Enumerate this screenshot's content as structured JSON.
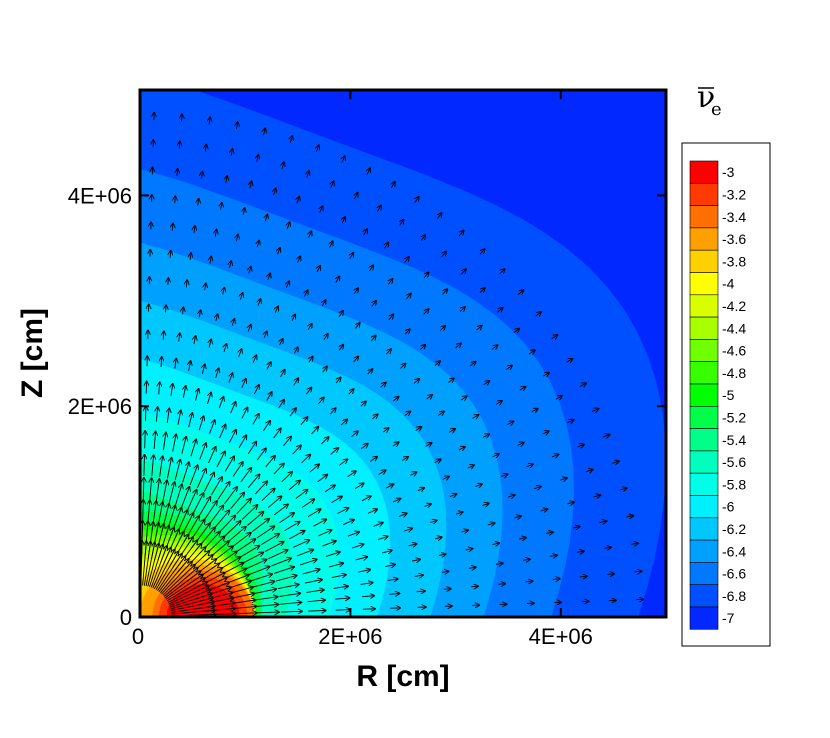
{
  "chart_data": {
    "type": "heatmap",
    "subtype": "filled-contour-with-vector-field",
    "xlabel": "R [cm]",
    "ylabel": "Z [cm]",
    "x_ticks": [
      "0",
      "2E+06",
      "4E+06"
    ],
    "y_ticks": [
      "0",
      "2E+06",
      "4E+06"
    ],
    "x_tick_values": [
      0,
      2000000,
      4000000
    ],
    "y_tick_values": [
      0,
      2000000,
      4000000
    ],
    "xlim": [
      0,
      5000000
    ],
    "ylim": [
      0,
      5000000
    ],
    "legend": {
      "title": "ν",
      "title_subscript": "e",
      "title_overbar": true,
      "placement": "right",
      "levels": [
        "-3",
        "-3.2",
        "-3.4",
        "-3.6",
        "-3.8",
        "-4",
        "-4.2",
        "-4.4",
        "-4.6",
        "-4.8",
        "-5",
        "-5.2",
        "-5.4",
        "-5.6",
        "-5.8",
        "-6",
        "-6.2",
        "-6.4",
        "-6.6",
        "-6.8",
        "-7"
      ],
      "colors": [
        "#ff0000",
        "#ff3a00",
        "#ff7000",
        "#ffa000",
        "#ffd000",
        "#ffff00",
        "#d8ff00",
        "#a8ff00",
        "#70ff00",
        "#38ff00",
        "#00ff00",
        "#00ff48",
        "#00ff88",
        "#00ffbe",
        "#00ffe8",
        "#00f0ff",
        "#00c8ff",
        "#00a0ff",
        "#0078ff",
        "#0050ff",
        "#0028ff"
      ]
    },
    "field_peak": {
      "r": 600000,
      "z": 0,
      "value": -3
    },
    "grid": false
  }
}
